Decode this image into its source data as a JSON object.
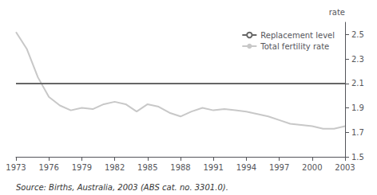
{
  "chart_data": {
    "type": "line",
    "source": "Source: Births, Australia, 2003 (ABS cat. no. 3301.0).",
    "ylabel": "rate",
    "x": [
      1973,
      1974,
      1975,
      1976,
      1977,
      1978,
      1979,
      1980,
      1981,
      1982,
      1983,
      1984,
      1985,
      1986,
      1987,
      1988,
      1989,
      1990,
      1991,
      1992,
      1993,
      1994,
      1995,
      1996,
      1997,
      1998,
      1999,
      2000,
      2001,
      2002,
      2003
    ],
    "series": [
      {
        "name": "Replacement level",
        "type": "hline",
        "color": "#666666",
        "y": 2.1
      },
      {
        "name": "Total fertility rate",
        "type": "line",
        "color": "#c8c8c8",
        "values": [
          2.52,
          2.38,
          2.15,
          1.99,
          1.92,
          1.88,
          1.9,
          1.89,
          1.93,
          1.95,
          1.93,
          1.87,
          1.93,
          1.91,
          1.86,
          1.83,
          1.87,
          1.9,
          1.88,
          1.89,
          1.88,
          1.87,
          1.85,
          1.83,
          1.8,
          1.77,
          1.76,
          1.75,
          1.73,
          1.73,
          1.75
        ]
      }
    ],
    "xlim": [
      1973,
      2003
    ],
    "xticks": [
      1973,
      1976,
      1979,
      1982,
      1985,
      1988,
      1991,
      1994,
      1997,
      2000,
      2003
    ],
    "ylim": [
      1.5,
      2.6
    ],
    "yticks": [
      1.5,
      1.7,
      1.9,
      2.1,
      2.3,
      2.5
    ],
    "grid": false,
    "legend": "upper right"
  }
}
